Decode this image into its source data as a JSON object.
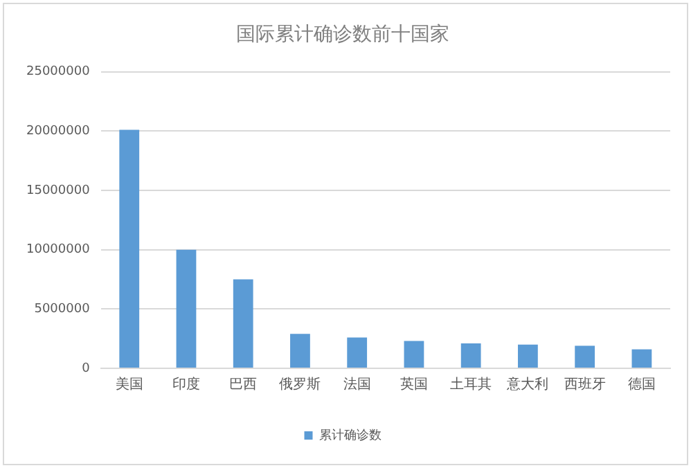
{
  "chart_data": {
    "type": "bar",
    "title": "国际累计确诊数前十国家",
    "categories": [
      "美国",
      "印度",
      "巴西",
      "俄罗斯",
      "法国",
      "英国",
      "土耳其",
      "意大利",
      "西班牙",
      "德国"
    ],
    "series": [
      {
        "name": "累计确诊数",
        "color": "#5b9bd5",
        "values": [
          20100000,
          10000000,
          7500000,
          2900000,
          2600000,
          2300000,
          2100000,
          2000000,
          1900000,
          1600000
        ]
      }
    ],
    "ylim": [
      0,
      25000000
    ],
    "yticks": [
      0,
      5000000,
      10000000,
      15000000,
      20000000,
      25000000
    ],
    "grid": "y",
    "legend": "bottom"
  }
}
